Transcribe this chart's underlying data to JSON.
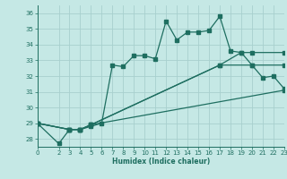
{
  "xlabel": "Humidex (Indice chaleur)",
  "ylabel": "",
  "bg_color": "#c5e8e5",
  "grid_color": "#a8d0ce",
  "line_color": "#1e6e60",
  "xlim": [
    0,
    23
  ],
  "ylim": [
    27.5,
    36.5
  ],
  "yticks": [
    28,
    29,
    30,
    31,
    32,
    33,
    34,
    35,
    36
  ],
  "xticks": [
    0,
    2,
    3,
    4,
    5,
    6,
    7,
    8,
    9,
    10,
    11,
    12,
    13,
    14,
    15,
    16,
    17,
    18,
    19,
    20,
    21,
    22,
    23
  ],
  "series1": [
    [
      0,
      29.0
    ],
    [
      2,
      27.7
    ],
    [
      3,
      28.6
    ],
    [
      4,
      28.6
    ],
    [
      5,
      28.8
    ],
    [
      6,
      29.0
    ],
    [
      7,
      32.7
    ],
    [
      8,
      32.6
    ],
    [
      9,
      33.3
    ],
    [
      10,
      33.3
    ],
    [
      11,
      33.1
    ],
    [
      12,
      35.5
    ],
    [
      13,
      34.3
    ],
    [
      14,
      34.8
    ],
    [
      15,
      34.8
    ],
    [
      16,
      34.9
    ],
    [
      17,
      35.8
    ],
    [
      18,
      33.6
    ],
    [
      19,
      33.5
    ],
    [
      20,
      32.7
    ],
    [
      21,
      31.9
    ],
    [
      22,
      32.0
    ],
    [
      23,
      31.2
    ]
  ],
  "series2": [
    [
      0,
      29.0
    ],
    [
      3,
      28.6
    ],
    [
      4,
      28.6
    ],
    [
      5,
      28.9
    ],
    [
      23,
      31.1
    ]
  ],
  "series3": [
    [
      0,
      29.0
    ],
    [
      3,
      28.6
    ],
    [
      4,
      28.6
    ],
    [
      5,
      28.9
    ],
    [
      17,
      32.7
    ],
    [
      20,
      32.7
    ],
    [
      23,
      32.7
    ]
  ],
  "series4": [
    [
      0,
      29.0
    ],
    [
      3,
      28.6
    ],
    [
      4,
      28.6
    ],
    [
      5,
      28.9
    ],
    [
      17,
      32.7
    ],
    [
      19,
      33.5
    ],
    [
      20,
      33.5
    ],
    [
      23,
      33.5
    ]
  ]
}
